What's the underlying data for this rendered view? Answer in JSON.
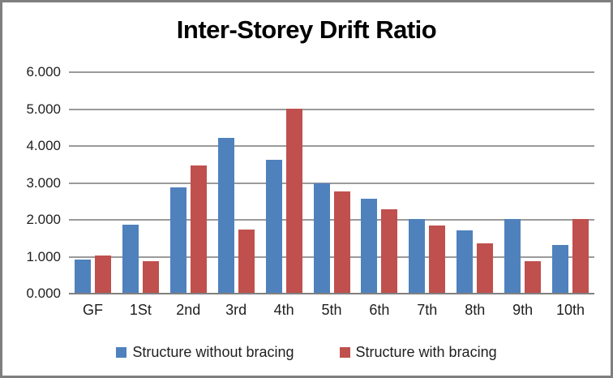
{
  "chart_data": {
    "type": "bar",
    "title": "Inter-Storey Drift Ratio",
    "categories": [
      "GF",
      "1St",
      "2nd",
      "3rd",
      "4th",
      "5th",
      "6th",
      "7th",
      "8th",
      "9th",
      "10th"
    ],
    "series": [
      {
        "name": "Structure without bracing",
        "color": "#4f81bd",
        "values": [
          0.93,
          1.87,
          2.88,
          4.22,
          3.62,
          3.0,
          2.58,
          2.02,
          1.72,
          2.02,
          1.31
        ]
      },
      {
        "name": "Structure with bracing",
        "color": "#c0504d",
        "values": [
          1.04,
          0.89,
          3.47,
          1.73,
          5.02,
          2.78,
          2.29,
          1.84,
          1.36,
          0.89,
          2.02
        ]
      }
    ],
    "xlabel": "",
    "ylabel": "",
    "ylim": [
      0,
      6
    ],
    "ytick_labels": [
      "0.000",
      "1.000",
      "2.000",
      "3.000",
      "4.000",
      "5.000",
      "6.000"
    ],
    "grid": true,
    "legend_position": "bottom"
  },
  "colors": {
    "gridline": "#9a9a9a",
    "axis": "#808080",
    "frame_border": "#7f7f7f",
    "title_text": "#000000",
    "tick_text": "#1f1f1f"
  }
}
